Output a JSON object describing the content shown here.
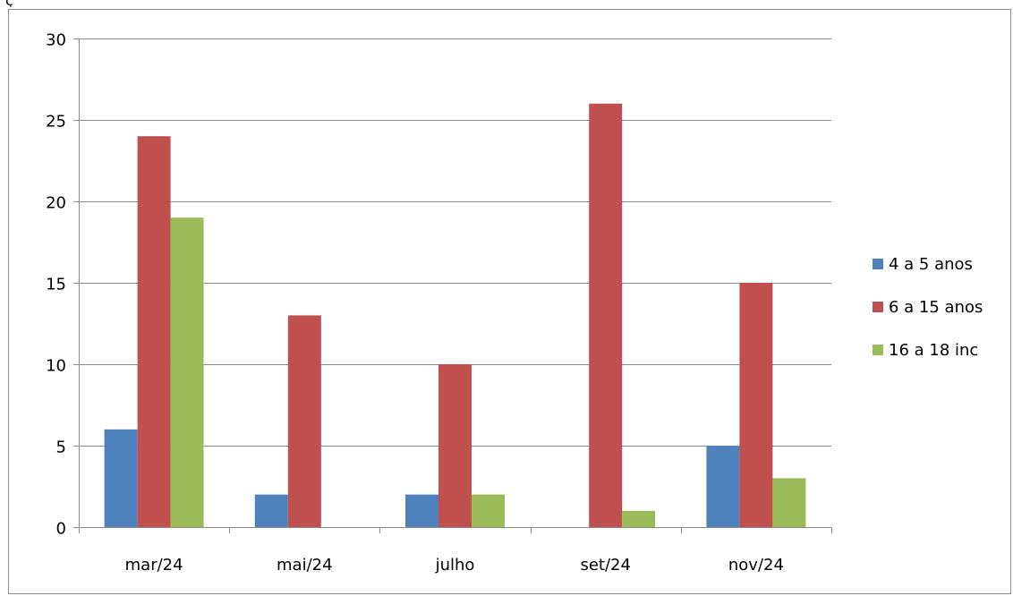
{
  "chart_data": {
    "type": "bar",
    "categories": [
      "mar/24",
      "mai/24",
      "julho",
      "set/24",
      "nov/24"
    ],
    "series": [
      {
        "name": "4 a 5 anos",
        "color": "#4f81bd",
        "values": [
          6,
          2,
          2,
          0,
          5
        ]
      },
      {
        "name": "6 a 15 anos",
        "color": "#c0504d",
        "values": [
          24,
          13,
          10,
          26,
          15
        ]
      },
      {
        "name": "16 a 18 inc",
        "color": "#9bbb59",
        "values": [
          19,
          0,
          2,
          1,
          3
        ]
      }
    ],
    "title": "",
    "xlabel": "",
    "ylabel": "",
    "ylim": [
      0,
      30
    ],
    "yticks": [
      0,
      5,
      10,
      15,
      20,
      25,
      30
    ],
    "grid": true,
    "legend_position": "right"
  }
}
